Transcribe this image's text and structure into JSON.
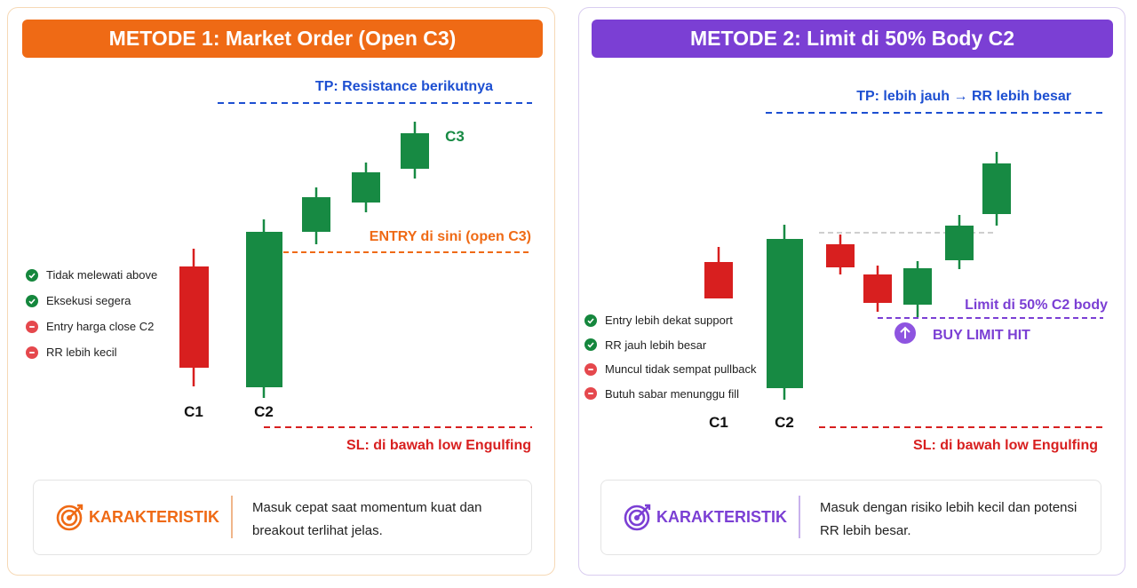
{
  "colors": {
    "orange": "#ef6a15",
    "purple": "#7b3fd4",
    "bull": "#178a43",
    "bear": "#d81f1f",
    "tp_blue": "#1d4fd1",
    "check_green": "#15873d",
    "minus_red": "#e5484d"
  },
  "panels": [
    {
      "title": "METODE 1: Market Order (Open C3)",
      "tp_label": "TP: Resistance berikutnya",
      "entry_label": "ENTRY di sini (open C3)",
      "sl_label": "SL: di bawah low Engulfing",
      "candle_labels": [
        "C1",
        "C2",
        "C3"
      ],
      "candles": [
        {
          "name": "C1",
          "dir": "bear"
        },
        {
          "name": "C2",
          "dir": "bull"
        },
        {
          "name": "bull-3",
          "dir": "bull"
        },
        {
          "name": "bull-4",
          "dir": "bull"
        },
        {
          "name": "C3",
          "dir": "bull"
        }
      ],
      "checklist": [
        {
          "icon": "check-icon",
          "text": "Tidak melewati above"
        },
        {
          "icon": "check-icon",
          "text": "Eksekusi segera"
        },
        {
          "icon": "minus-icon",
          "text": "Entry harga close C2"
        },
        {
          "icon": "minus-icon",
          "text": "RR lebih kecil"
        }
      ],
      "box": {
        "icon": "target-icon",
        "label": "KARAKTERISTIK",
        "text": "Masuk cepat saat momentum kuat dan breakout terlihat jelas."
      }
    },
    {
      "title": "METODE 2: Limit di 50% Body C2",
      "tp_label": "TP: lebih jauh → RR lebih besar",
      "limit_label": "Limit di 50% C2 body",
      "buy_limit_label": "BUY LIMIT HIT",
      "sl_label": "SL: di bawah low Engulfing",
      "candle_labels": [
        "C1",
        "C2"
      ],
      "candles": [
        {
          "name": "C1",
          "dir": "bear"
        },
        {
          "name": "C2",
          "dir": "bull"
        },
        {
          "name": "pullback-1",
          "dir": "bear"
        },
        {
          "name": "pullback-2",
          "dir": "bear"
        },
        {
          "name": "fill-candle",
          "dir": "bull"
        },
        {
          "name": "bull-6",
          "dir": "bull"
        },
        {
          "name": "bull-7",
          "dir": "bull"
        }
      ],
      "checklist": [
        {
          "icon": "check-icon",
          "text": "Entry lebih dekat support"
        },
        {
          "icon": "check-icon",
          "text": "RR jauh lebih besar"
        },
        {
          "icon": "minus-icon",
          "text": "Muncul tidak sempat pullback"
        },
        {
          "icon": "minus-icon",
          "text": "Butuh sabar menunggu fill"
        }
      ],
      "box": {
        "icon": "target-icon",
        "label": "KARAKTERISTIK",
        "text": "Masuk dengan risiko lebih kecil dan potensi RR lebih besar."
      }
    }
  ]
}
